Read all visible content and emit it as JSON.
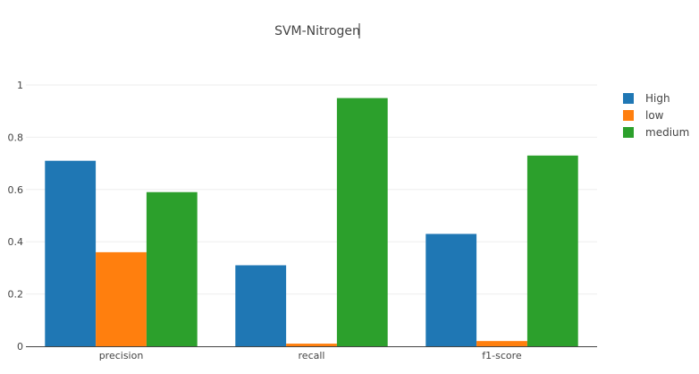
{
  "chart_data": {
    "type": "bar",
    "title": "SVM-Nitrogen",
    "xlabel": "",
    "ylabel": "",
    "categories": [
      "precision",
      "recall",
      "f1-score"
    ],
    "series": [
      {
        "name": "High",
        "color": "#1f77b4",
        "values": [
          0.71,
          0.31,
          0.43
        ]
      },
      {
        "name": "low",
        "color": "#ff7f0e",
        "values": [
          0.36,
          0.01,
          0.02
        ]
      },
      {
        "name": "medium",
        "color": "#2ca02c",
        "values": [
          0.59,
          0.95,
          0.73
        ]
      }
    ],
    "ylim": [
      0,
      1
    ],
    "yticks": [
      "0",
      "0.2",
      "0.4",
      "0.6",
      "0.8",
      "1"
    ],
    "grid": true,
    "legend_position": "top-right"
  }
}
